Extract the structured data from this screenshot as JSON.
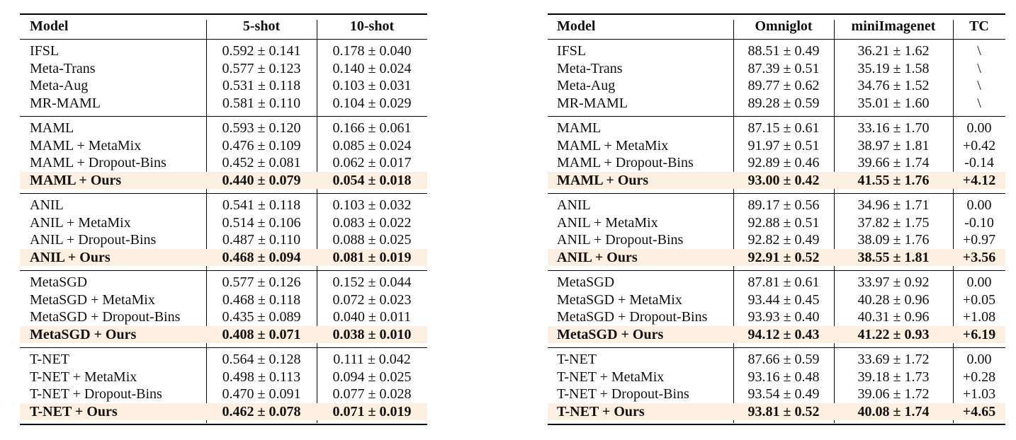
{
  "tables": [
    {
      "header": [
        "Model",
        "5-shot",
        "10-shot"
      ],
      "groups": [
        [
          [
            "IFSL",
            "0.592 ± 0.141",
            "0.178 ± 0.040"
          ],
          [
            "Meta-Trans",
            "0.577 ± 0.123",
            "0.140 ± 0.024"
          ],
          [
            "Meta-Aug",
            "0.531 ± 0.118",
            "0.103 ± 0.031"
          ],
          [
            "MR-MAML",
            "0.581 ± 0.110",
            "0.104 ± 0.029"
          ]
        ],
        [
          [
            "MAML",
            "0.593 ± 0.120",
            "0.166 ± 0.061"
          ],
          [
            "MAML + MetaMix",
            "0.476 ± 0.109",
            "0.085 ± 0.024"
          ],
          [
            "MAML + Dropout-Bins",
            "0.452 ± 0.081",
            "0.062 ± 0.017"
          ],
          [
            "MAML + Ours",
            "0.440 ± 0.079",
            "0.054 ± 0.018"
          ]
        ],
        [
          [
            "ANIL",
            "0.541 ± 0.118",
            "0.103 ± 0.032"
          ],
          [
            "ANIL + MetaMix",
            "0.514 ± 0.106",
            "0.083 ± 0.022"
          ],
          [
            "ANIL + Dropout-Bins",
            "0.487 ± 0.110",
            "0.088 ± 0.025"
          ],
          [
            "ANIL + Ours",
            "0.468 ± 0.094",
            "0.081 ± 0.019"
          ]
        ],
        [
          [
            "MetaSGD",
            "0.577 ± 0.126",
            "0.152 ± 0.044"
          ],
          [
            "MetaSGD + MetaMix",
            "0.468 ± 0.118",
            "0.072 ± 0.023"
          ],
          [
            "MetaSGD + Dropout-Bins",
            "0.435 ± 0.089",
            "0.040 ± 0.011"
          ],
          [
            "MetaSGD + Ours",
            "0.408 ± 0.071",
            "0.038 ± 0.010"
          ]
        ],
        [
          [
            "T-NET",
            "0.564 ± 0.128",
            "0.111 ± 0.042"
          ],
          [
            "T-NET + MetaMix",
            "0.498 ± 0.113",
            "0.094 ± 0.025"
          ],
          [
            "T-NET + Dropout-Bins",
            "0.470 ± 0.091",
            "0.077 ± 0.028"
          ],
          [
            "T-NET + Ours",
            "0.462 ± 0.078",
            "0.071 ± 0.019"
          ]
        ]
      ]
    },
    {
      "header": [
        "Model",
        "Omniglot",
        "miniImagenet",
        "TC"
      ],
      "groups": [
        [
          [
            "IFSL",
            "88.51 ± 0.49",
            "36.21 ± 1.62",
            "\\"
          ],
          [
            "Meta-Trans",
            "87.39 ± 0.51",
            "35.19 ± 1.58",
            "\\"
          ],
          [
            "Meta-Aug",
            "89.77 ± 0.62",
            "34.76 ± 1.52",
            "\\"
          ],
          [
            "MR-MAML",
            "89.28 ± 0.59",
            "35.01 ± 1.60",
            "\\"
          ]
        ],
        [
          [
            "MAML",
            "87.15 ± 0.61",
            "33.16 ± 1.70",
            "0.00"
          ],
          [
            "MAML + MetaMix",
            "91.97 ± 0.51",
            "38.97 ± 1.81",
            "+0.42"
          ],
          [
            "MAML + Dropout-Bins",
            "92.89 ± 0.46",
            "39.66 ± 1.74",
            "-0.14"
          ],
          [
            "MAML + Ours",
            "93.00 ± 0.42",
            "41.55 ± 1.76",
            "+4.12"
          ]
        ],
        [
          [
            "ANIL",
            "89.17 ± 0.56",
            "34.96 ± 1.71",
            "0.00"
          ],
          [
            "ANIL + MetaMix",
            "92.88 ± 0.51",
            "37.82 ± 1.75",
            "-0.10"
          ],
          [
            "ANIL + Dropout-Bins",
            "92.82 ± 0.49",
            "38.09 ± 1.76",
            "+0.97"
          ],
          [
            "ANIL + Ours",
            "92.91 ± 0.52",
            "38.55 ± 1.81",
            "+3.56"
          ]
        ],
        [
          [
            "MetaSGD",
            "87.81 ± 0.61",
            "33.97 ± 0.92",
            "0.00"
          ],
          [
            "MetaSGD + MetaMix",
            "93.44 ± 0.45",
            "40.28 ± 0.96",
            "+0.05"
          ],
          [
            "MetaSGD + Dropout-Bins",
            "93.93 ± 0.40",
            "40.31 ± 0.96",
            "+1.08"
          ],
          [
            "MetaSGD + Ours",
            "94.12 ± 0.43",
            "41.22 ± 0.93",
            "+6.19"
          ]
        ],
        [
          [
            "T-NET",
            "87.66 ± 0.59",
            "33.69 ± 1.72",
            "0.00"
          ],
          [
            "T-NET + MetaMix",
            "93.16 ± 0.48",
            "39.18 ± 1.73",
            "+0.28"
          ],
          [
            "T-NET + Dropout-Bins",
            "93.54 ± 0.49",
            "39.06 ± 1.72",
            "+1.03"
          ],
          [
            "T-NET + Ours",
            "93.81 ± 0.52",
            "40.08 ± 1.74",
            "+4.65"
          ]
        ]
      ]
    }
  ]
}
